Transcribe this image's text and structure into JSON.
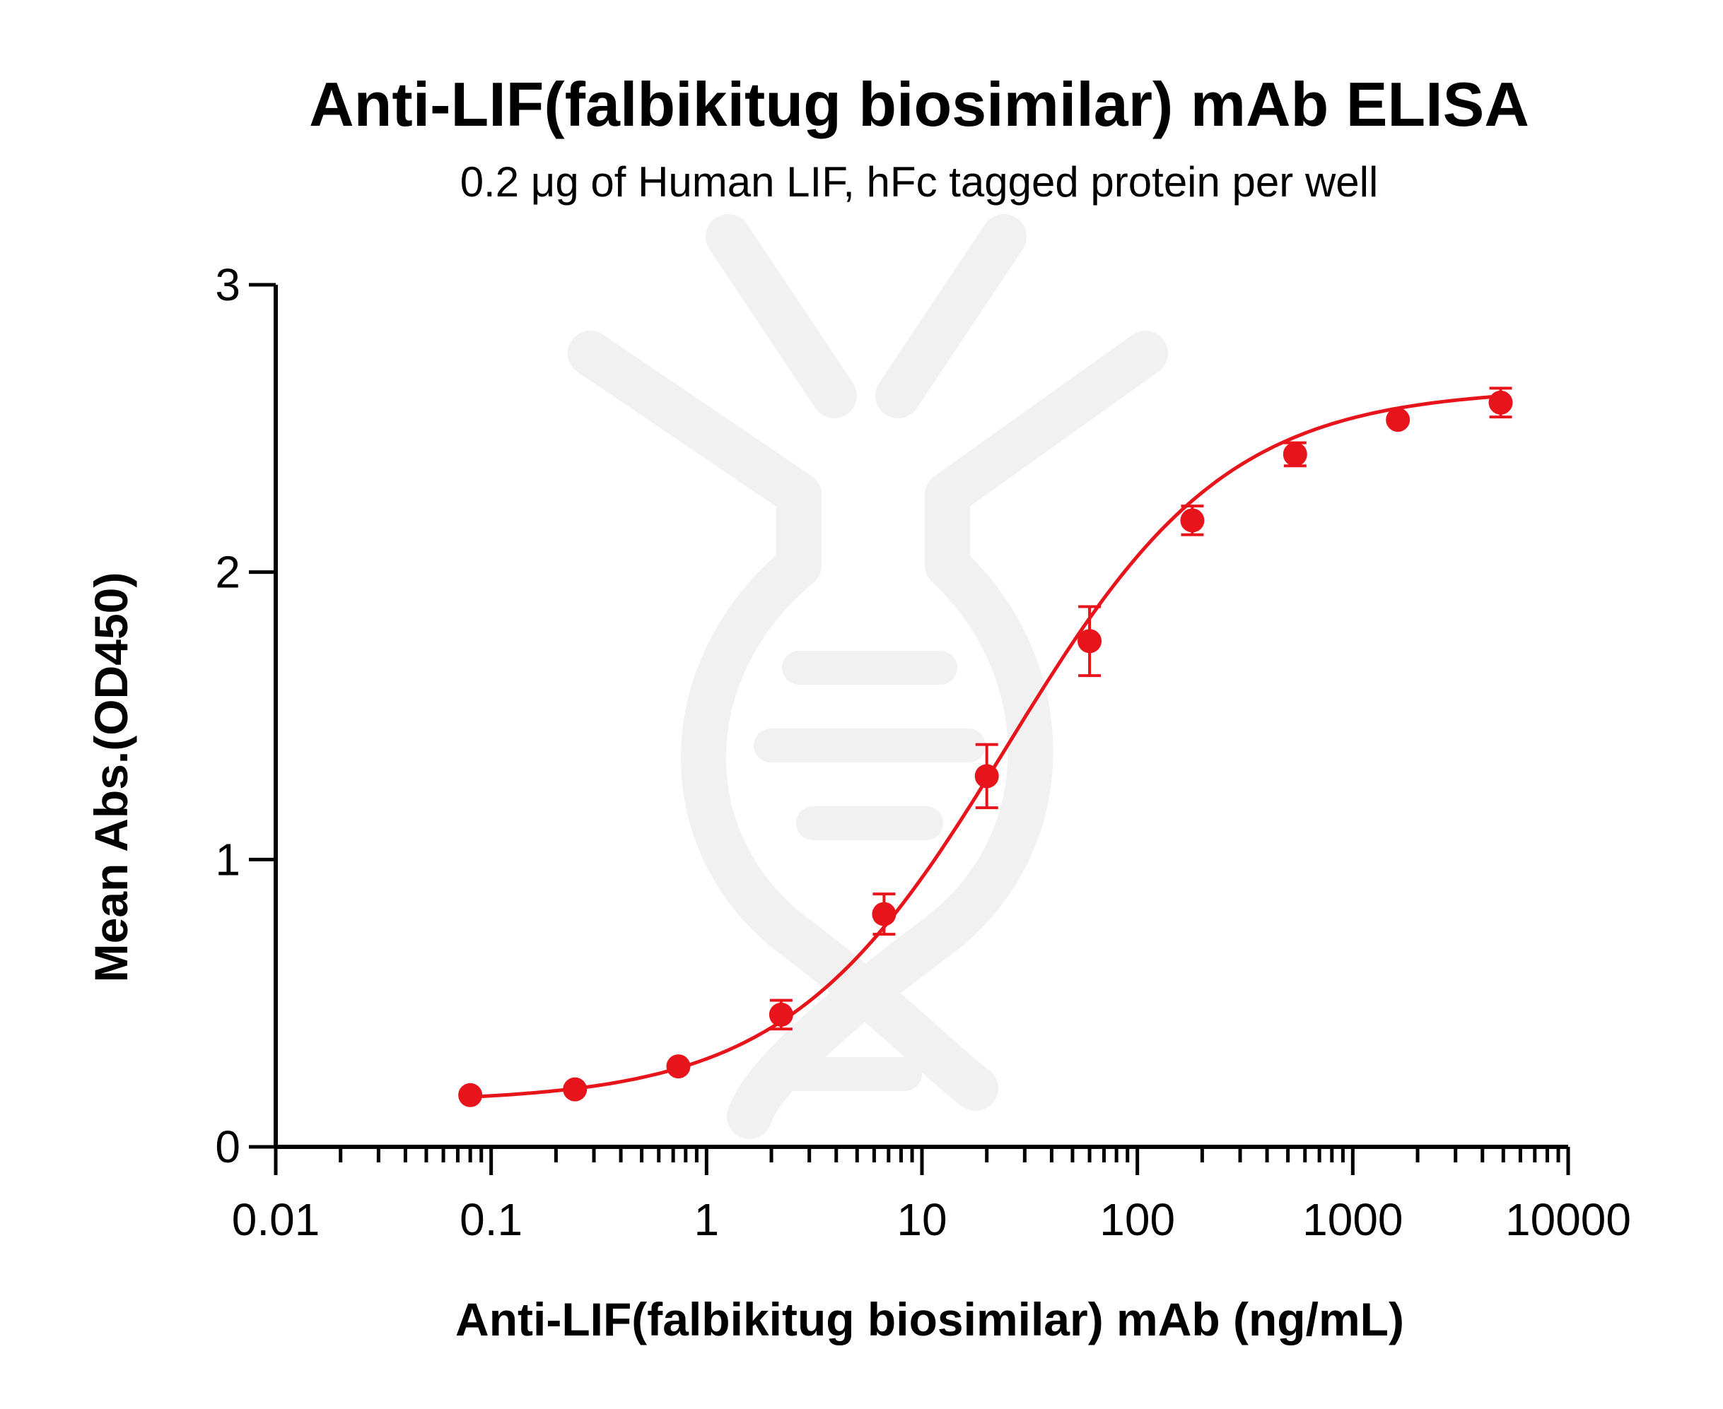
{
  "chart_data": {
    "type": "scatter",
    "title": "Anti-LIF(falbikitug biosimilar) mAb ELISA",
    "subtitle": "0.2 μg of Human LIF, hFc tagged protein per well",
    "xlabel": "Anti-LIF(falbikitug biosimilar) mAb (ng/mL)",
    "ylabel": "Mean Abs.(OD450)",
    "xscale": "log",
    "xlim": [
      0.01,
      10000
    ],
    "ylim": [
      0,
      3
    ],
    "xticks": [
      0.01,
      0.1,
      1,
      10,
      100,
      1000,
      10000
    ],
    "xtick_labels": [
      "0.01",
      "0.1",
      "1",
      "10",
      "100",
      "1000",
      "10000"
    ],
    "yticks": [
      0,
      1,
      2,
      3
    ],
    "ytick_labels": [
      "0",
      "1",
      "2",
      "3"
    ],
    "grid": false,
    "legend": "none",
    "series": [
      {
        "color": "#e8141b",
        "x": [
          0.08,
          0.245,
          0.74,
          2.22,
          6.67,
          20.0,
          60.0,
          180.0,
          540.0,
          1620.0,
          4860.0
        ],
        "y": [
          0.18,
          0.2,
          0.28,
          0.46,
          0.81,
          1.29,
          1.76,
          2.18,
          2.41,
          2.53,
          2.59
        ],
        "error": [
          0.0,
          0.0,
          0.0,
          0.05,
          0.07,
          0.11,
          0.12,
          0.05,
          0.04,
          0.0,
          0.05
        ]
      }
    ],
    "fit": {
      "type": "4PL",
      "bottom": 0.155,
      "top": 2.64,
      "ec50": 25,
      "hill": 0.85
    }
  }
}
